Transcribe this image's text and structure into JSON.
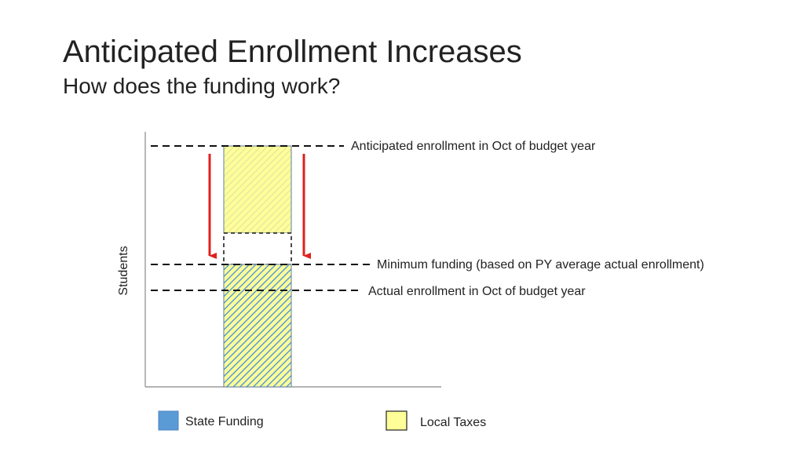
{
  "slide": {
    "title": "Anticipated Enrollment Increases",
    "subtitle": "How does the funding work?"
  },
  "diagram": {
    "y_axis_label": "Students",
    "reference_lines": {
      "anticipated": "Anticipated enrollment in Oct of budget year",
      "minimum": "Minimum funding (based on PY average actual enrollment)",
      "actual": "Actual enrollment in Oct of budget year"
    },
    "legend": {
      "state": "State Funding",
      "local": "Local Taxes"
    },
    "colors": {
      "state": "#5b9bd5",
      "local": "#ffff99",
      "arrow": "#e0201e",
      "line": "#111111",
      "axis": "#888888"
    }
  }
}
